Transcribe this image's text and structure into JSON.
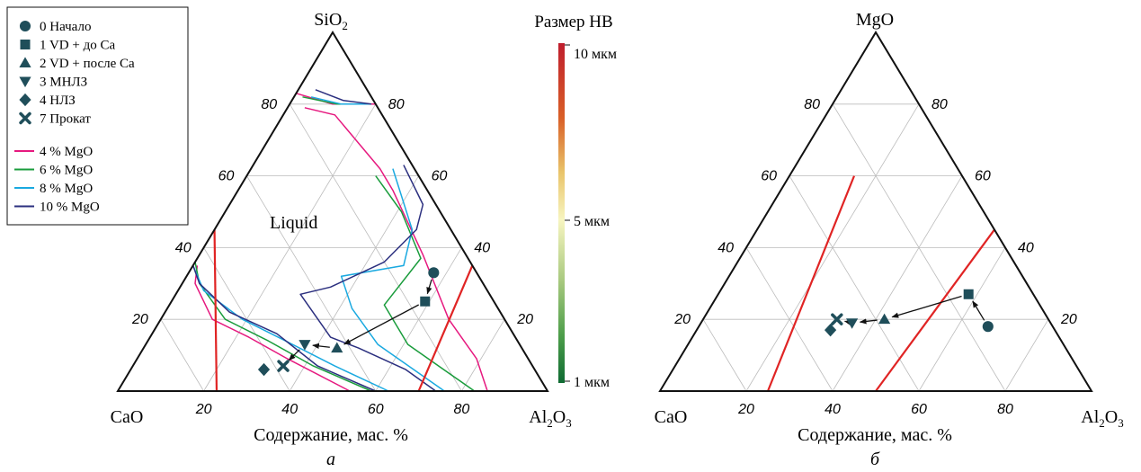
{
  "legend": {
    "markers": [
      {
        "symbol": "circle",
        "label": "0 Начало"
      },
      {
        "symbol": "square",
        "label": "1 VD + до Ca"
      },
      {
        "symbol": "triangle-up",
        "label": "2 VD + после Ca"
      },
      {
        "symbol": "triangle-down",
        "label": "3 МНЛЗ"
      },
      {
        "symbol": "diamond",
        "label": "4 НЛЗ"
      },
      {
        "symbol": "cross",
        "label": "7 Прокат"
      }
    ],
    "lines": [
      {
        "label": "4 % MgO",
        "color": "#e6197f"
      },
      {
        "label": "6 % MgO",
        "color": "#1a9c3c"
      },
      {
        "label": "8 % MgO",
        "color": "#1aa9e0"
      },
      {
        "label": "10 % MgO",
        "color": "#2b2f7f"
      }
    ]
  },
  "colorbar": {
    "title": "Размер НВ",
    "ticks": [
      "10 мкм",
      "5 мкм",
      "1 мкм"
    ],
    "colors": [
      "#bf1e2d",
      "#d95f27",
      "#e9c46a",
      "#f7f5c0",
      "#a8c97f",
      "#4d9e4a",
      "#0f6b33"
    ]
  },
  "marker_color": "#1f4e5a",
  "boundary_color": "#e02424",
  "chart_data": [
    {
      "type": "ternary",
      "panel_label": "а",
      "axes": {
        "top": "SiO2",
        "left": "CaO",
        "right": "Al2O3"
      },
      "axis_title": "Содержание, мас. %",
      "annotation": "Liquid",
      "ticks": [
        20,
        40,
        60,
        80
      ],
      "points": [
        {
          "label": "0",
          "symbol": "circle",
          "CaO": 10,
          "SiO2": 33,
          "Al2O3": 57
        },
        {
          "label": "1",
          "symbol": "square",
          "CaO": 16,
          "SiO2": 25,
          "Al2O3": 59
        },
        {
          "label": "2",
          "symbol": "triangle-up",
          "CaO": 43,
          "SiO2": 12,
          "Al2O3": 45
        },
        {
          "label": "3",
          "symbol": "triangle-down",
          "CaO": 50,
          "SiO2": 13,
          "Al2O3": 37
        },
        {
          "label": "7",
          "symbol": "cross",
          "CaO": 58,
          "SiO2": 7,
          "Al2O3": 35
        },
        {
          "label": "4",
          "symbol": "diamond",
          "CaO": 63,
          "SiO2": 6,
          "Al2O3": 31
        }
      ],
      "boundaries": [
        [
          [
            55,
            45,
            0
          ],
          [
            77,
            0,
            23
          ]
        ],
        [
          [
            0,
            35,
            65
          ],
          [
            30,
            0,
            70
          ]
        ]
      ],
      "liquidus": [
        {
          "name": "4 % MgO",
          "segments": [
            [
              [
                17,
                83,
                0
              ],
              [
                10,
                80,
                10
              ],
              [
                0,
                80,
                20
              ]
            ],
            [
              [
                17,
                79,
                4
              ],
              [
                11,
                77,
                12
              ],
              [
                8,
                62,
                30
              ],
              [
                8,
                56,
                36
              ],
              [
                10,
                38,
                52
              ],
              [
                13,
                20,
                67
              ],
              [
                12,
                9,
                79
              ],
              [
                14,
                0,
                86
              ]
            ],
            [
              [
                64,
                35,
                1
              ],
              [
                67,
                30,
                3
              ],
              [
                68,
                20,
                12
              ],
              [
                62,
                15,
                23
              ],
              [
                56,
                9,
                35
              ],
              [
                46,
                0,
                54
              ]
            ]
          ]
        },
        {
          "name": "6 % MgO",
          "segments": [
            [
              [
                16,
                82,
                2
              ],
              [
                9,
                80,
                11
              ],
              [
                1,
                80,
                19
              ]
            ],
            [
              [
                10,
                60,
                30
              ],
              [
                9,
                50,
                41
              ],
              [
                11,
                37,
                52
              ],
              [
                26,
                24,
                50
              ],
              [
                26,
                13,
                61
              ],
              [
                17,
                0,
                83
              ]
            ],
            [
              [
                64,
                36,
                0
              ],
              [
                66,
                30,
                4
              ],
              [
                65,
                20,
                15
              ],
              [
                58,
                14,
                28
              ],
              [
                51,
                7,
                42
              ],
              [
                41,
                0,
                59
              ]
            ]
          ]
        },
        {
          "name": "8 % MgO",
          "segments": [
            [
              [
                14,
                82,
                4
              ],
              [
                8,
                80,
                12
              ],
              [
                1,
                80,
                19
              ]
            ],
            [
              [
                5,
                62,
                33
              ],
              [
                9,
                45,
                46
              ],
              [
                16,
                35,
                49
              ],
              [
                32,
                32,
                36
              ],
              [
                34,
                23,
                43
              ],
              [
                33,
                13,
                54
              ],
              [
                24,
                0,
                76
              ]
            ],
            [
              [
                65,
                35,
                0
              ],
              [
                66,
                28,
                6
              ],
              [
                61,
                20,
                19
              ],
              [
                54,
                14,
                32
              ],
              [
                46,
                7,
                47
              ],
              [
                37,
                0,
                63
              ]
            ]
          ]
        },
        {
          "name": "10 % MgO",
          "segments": [
            [
              [
                12,
                84,
                4
              ],
              [
                7,
                81,
                12
              ],
              [
                1,
                80,
                19
              ]
            ],
            [
              [
                2,
                63,
                35
              ],
              [
                3,
                52,
                45
              ],
              [
                8,
                45,
                47
              ],
              [
                20,
                36,
                44
              ],
              [
                36,
                29,
                35
              ],
              [
                44,
                27,
                29
              ],
              [
                43,
                15,
                42
              ],
              [
                38,
                12,
                50
              ],
              [
                30,
                6,
                64
              ],
              [
                26,
                0,
                74
              ]
            ],
            [
              [
                65,
                35,
                0
              ],
              [
                66,
                30,
                4
              ],
              [
                63,
                22,
                15
              ],
              [
                55,
                16,
                29
              ],
              [
                50,
                7,
                43
              ],
              [
                40,
                0,
                60
              ]
            ]
          ]
        }
      ],
      "arrows": [
        [
          1,
          2
        ],
        [
          2,
          3
        ],
        [
          3,
          4
        ],
        [
          0,
          1
        ]
      ]
    },
    {
      "type": "ternary",
      "panel_label": "б",
      "axes": {
        "top": "MgO",
        "left": "CaO",
        "right": "Al2O3"
      },
      "axis_title": "Содержание, мас. %",
      "ticks": [
        20,
        40,
        60,
        80
      ],
      "points": [
        {
          "label": "0",
          "symbol": "circle",
          "CaO": 15,
          "MgO": 18,
          "Al2O3": 67
        },
        {
          "label": "1",
          "symbol": "square",
          "CaO": 15,
          "MgO": 27,
          "Al2O3": 58
        },
        {
          "label": "2",
          "symbol": "triangle-up",
          "CaO": 38,
          "MgO": 20,
          "Al2O3": 42
        },
        {
          "label": "3",
          "symbol": "triangle-down",
          "CaO": 46,
          "MgO": 19,
          "Al2O3": 35
        },
        {
          "label": "7",
          "symbol": "cross",
          "CaO": 49,
          "MgO": 20,
          "Al2O3": 31
        },
        {
          "label": "4",
          "symbol": "diamond",
          "CaO": 52,
          "MgO": 17,
          "Al2O3": 31
        }
      ],
      "boundaries": [
        [
          [
            25,
            60,
            15
          ],
          [
            75,
            0,
            25
          ]
        ],
        [
          [
            0,
            45,
            55
          ],
          [
            50,
            0,
            50
          ]
        ]
      ],
      "arrows": [
        [
          0,
          1
        ],
        [
          1,
          2
        ],
        [
          2,
          3
        ],
        [
          3,
          4
        ]
      ]
    }
  ]
}
